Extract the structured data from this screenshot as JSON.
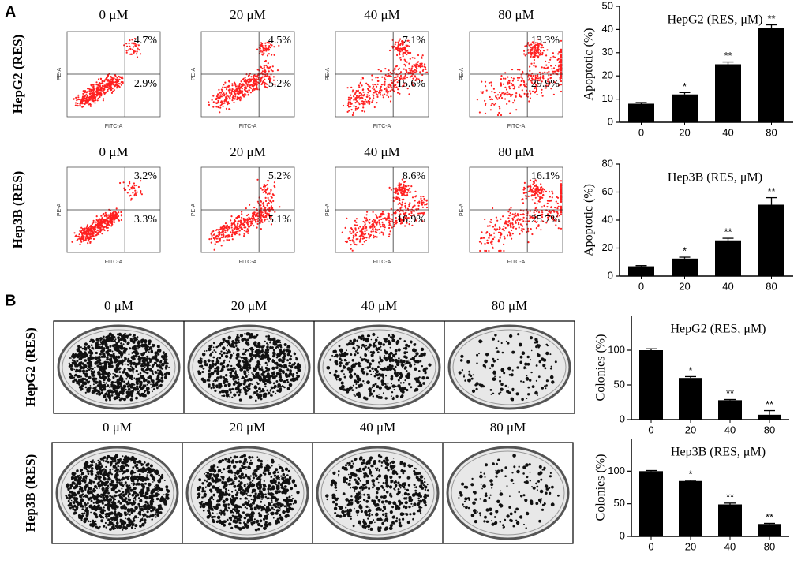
{
  "panels": {
    "a": "A",
    "b": "B"
  },
  "flow": {
    "doses": [
      "0 μM",
      "20 μM",
      "40 μM",
      "80 μM"
    ],
    "y_axis_label": "PE-A",
    "x_axis_label": "FITC-A",
    "rows": [
      {
        "label": "HepG2 (RES)",
        "upper": [
          "4.7%",
          "4.5%",
          "7.1%",
          "13.3%"
        ],
        "lower": [
          "2.9%",
          "5.2%",
          "15.6%",
          "29.9%"
        ]
      },
      {
        "label": "Hep3B (RES)",
        "upper": [
          "3.2%",
          "5.2%",
          "8.6%",
          "16.1%"
        ],
        "lower": [
          "3.3%",
          "5.1%",
          "16.9%",
          "25.7%"
        ]
      }
    ]
  },
  "colony": {
    "rows": [
      {
        "label": "HepG2 (RES)",
        "doses": [
          "0 μM",
          "20 μM",
          "40 μM",
          "80 μM"
        ]
      },
      {
        "label": "Hep3B (RES)",
        "doses": [
          "0 μM",
          "20 μM",
          "40 μM",
          "80 μM"
        ]
      }
    ]
  },
  "chart_data": [
    {
      "type": "bar",
      "title": "HepG2 (RES, μM)",
      "y_label": "Apoptotic (%)",
      "categories": [
        "0",
        "20",
        "40",
        "80"
      ],
      "values": [
        8,
        12,
        25,
        40.5
      ],
      "errors": [
        0.5,
        0.8,
        1,
        1.5
      ],
      "annotations": [
        null,
        "*",
        "**",
        "**"
      ],
      "color": "#000000",
      "ylim": [
        0,
        50
      ],
      "yticks": [
        0,
        10,
        20,
        30,
        40,
        50
      ]
    },
    {
      "type": "bar",
      "title": "Hep3B (RES, μM)",
      "y_label": "Apoptotic (%)",
      "categories": [
        "0",
        "20",
        "40",
        "80"
      ],
      "values": [
        7,
        12.5,
        25.5,
        51
      ],
      "errors": [
        0.5,
        1,
        1.5,
        5
      ],
      "annotations": [
        null,
        "*",
        "**",
        "**"
      ],
      "color": "#000000",
      "ylim": [
        0,
        80
      ],
      "yticks": [
        0,
        20,
        40,
        60,
        80
      ]
    },
    {
      "type": "bar",
      "title": "HepG2 (RES, μM)",
      "y_label": "Colonies (%)",
      "categories": [
        "0",
        "20",
        "40",
        "80"
      ],
      "values": [
        100,
        60,
        28,
        7
      ],
      "errors": [
        2,
        2,
        1,
        6
      ],
      "annotations": [
        null,
        "*",
        "**",
        "**"
      ],
      "color": "#000000",
      "ylim": [
        0,
        150
      ],
      "yticks": [
        0,
        50,
        100
      ]
    },
    {
      "type": "bar",
      "title": "Hep3B (RES, μM)",
      "y_label": "Colonies (%)",
      "categories": [
        "0",
        "20",
        "40",
        "80"
      ],
      "values": [
        100,
        85,
        49,
        19
      ],
      "errors": [
        1,
        1,
        2,
        1
      ],
      "annotations": [
        null,
        "*",
        "**",
        "**"
      ],
      "color": "#000000",
      "ylim": [
        0,
        150
      ],
      "yticks": [
        0,
        50,
        100
      ]
    }
  ]
}
